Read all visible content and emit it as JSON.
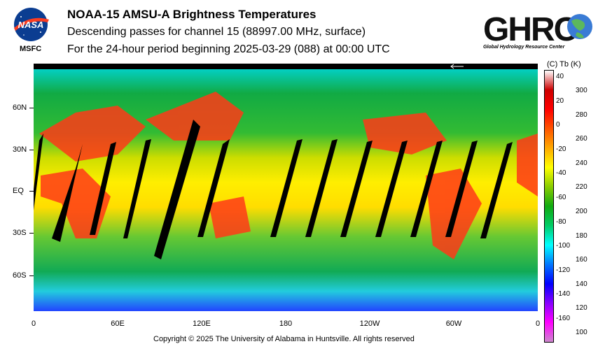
{
  "header": {
    "nasa_logo_text": "NASA",
    "msfc_label": "MSFC",
    "title": "NOAA-15 AMSU-A Brightness Temperatures",
    "subtitle": "Descending passes for channel 15 (88997.00 MHz, surface)",
    "period": "For the 24-hour period beginning 2025-03-29 (088) at 00:00 UTC",
    "ghrc_logo_text": "GHRC",
    "ghrc_subtitle": "Global Hydrology Resource Center"
  },
  "map": {
    "lat_labels": [
      "60N",
      "30N",
      "EQ",
      "30S",
      "60S"
    ],
    "lon_labels": [
      "0",
      "60E",
      "120E",
      "180",
      "120W",
      "60W",
      "0"
    ]
  },
  "colorbar": {
    "title": "(C)  Tb  (K)",
    "celsius_ticks": [
      "40",
      "20",
      "0",
      "-20",
      "-40",
      "-60",
      "-80",
      "-100",
      "-120",
      "-140",
      "-160"
    ],
    "kelvin_ticks": [
      "300",
      "280",
      "260",
      "240",
      "220",
      "200",
      "180",
      "160",
      "140",
      "120",
      "100"
    ],
    "colors": [
      "#cc88cc",
      "#ff00ff",
      "#8800ff",
      "#0000ff",
      "#0077ff",
      "#00ffff",
      "#00cc66",
      "#11aa11",
      "#88cc00",
      "#ffff00",
      "#ffaa00",
      "#ff5500",
      "#ff0000",
      "#cc0000",
      "#ffffff"
    ]
  },
  "footer": {
    "copyright": "Copyright © 2025 The University of Alabama in Huntsville.  All rights reserved"
  }
}
